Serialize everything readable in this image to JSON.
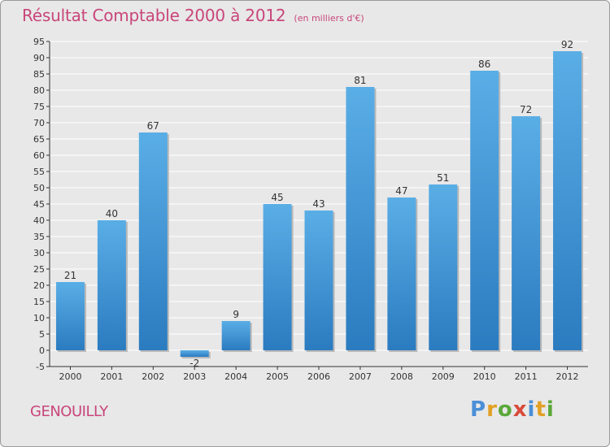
{
  "title": "Résultat Comptable 2000 à 2012",
  "unit_label": "(en milliers d'€)",
  "commune": "GENOUILLY",
  "brand": {
    "name": "Proxiti",
    "letters": [
      {
        "ch": "P",
        "color": "#4a8fd8"
      },
      {
        "ch": "r",
        "color": "#e2a024"
      },
      {
        "ch": "o",
        "color": "#5aa83a"
      },
      {
        "ch": "x",
        "color": "#d84a3a"
      },
      {
        "ch": "i",
        "color": "#4a8fd8"
      },
      {
        "ch": "t",
        "color": "#e2a024"
      },
      {
        "ch": "i",
        "color": "#5aa83a"
      }
    ]
  },
  "colors": {
    "title": "#c8467a",
    "bar_top": "#5aaee6",
    "bar_bottom": "#2b7bc0",
    "axis": "#333333",
    "grid": "#ffffff"
  },
  "chart_data": {
    "type": "bar",
    "title": "Résultat Comptable 2000 à 2012",
    "xlabel": "",
    "ylabel": "",
    "ylim": [
      -5,
      95
    ],
    "ytick_step": 5,
    "grid": true,
    "categories": [
      "2000",
      "2001",
      "2002",
      "2003",
      "2004",
      "2005",
      "2006",
      "2007",
      "2008",
      "2009",
      "2010",
      "2011",
      "2012"
    ],
    "values": [
      21,
      40,
      67,
      -2,
      9,
      45,
      43,
      81,
      47,
      51,
      86,
      72,
      92
    ]
  }
}
